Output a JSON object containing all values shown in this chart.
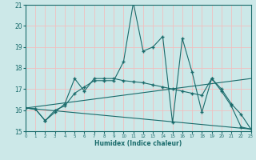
{
  "xlabel": "Humidex (Indice chaleur)",
  "xlim": [
    0,
    23
  ],
  "ylim": [
    15,
    21
  ],
  "xticks": [
    0,
    1,
    2,
    3,
    4,
    5,
    6,
    7,
    8,
    9,
    10,
    11,
    12,
    13,
    14,
    15,
    16,
    17,
    18,
    19,
    20,
    21,
    22,
    23
  ],
  "yticks": [
    15,
    16,
    17,
    18,
    19,
    20,
    21
  ],
  "bg_color": "#cce8e8",
  "line_color": "#1a6b6b",
  "grid_color": "#b8d8d8",
  "series": [
    {
      "x": [
        0,
        1,
        2,
        3,
        4,
        5,
        6,
        7,
        8,
        9,
        10,
        11,
        12,
        13,
        14,
        15,
        16,
        17,
        18,
        19,
        20,
        21,
        22,
        23
      ],
      "y": [
        16.1,
        16.05,
        15.5,
        16.0,
        16.2,
        16.8,
        17.1,
        17.4,
        17.4,
        17.4,
        18.3,
        21.1,
        18.8,
        19.0,
        19.5,
        15.4,
        19.4,
        17.8,
        15.9,
        17.5,
        16.9,
        16.2,
        15.2,
        15.1
      ],
      "marker": true
    },
    {
      "x": [
        0,
        1,
        2,
        3,
        4,
        5,
        6,
        7,
        8,
        9,
        10,
        11,
        12,
        13,
        14,
        15,
        16,
        17,
        18,
        19,
        20,
        21,
        22,
        23
      ],
      "y": [
        16.1,
        16.05,
        15.5,
        15.9,
        16.3,
        17.5,
        16.9,
        17.5,
        17.5,
        17.5,
        17.4,
        17.35,
        17.3,
        17.2,
        17.1,
        17.0,
        16.9,
        16.8,
        16.7,
        17.5,
        17.0,
        16.3,
        15.8,
        15.1
      ],
      "marker": true
    },
    {
      "x": [
        0,
        23
      ],
      "y": [
        16.1,
        17.5
      ],
      "marker": false
    },
    {
      "x": [
        0,
        23
      ],
      "y": [
        16.1,
        15.1
      ],
      "marker": false
    }
  ]
}
